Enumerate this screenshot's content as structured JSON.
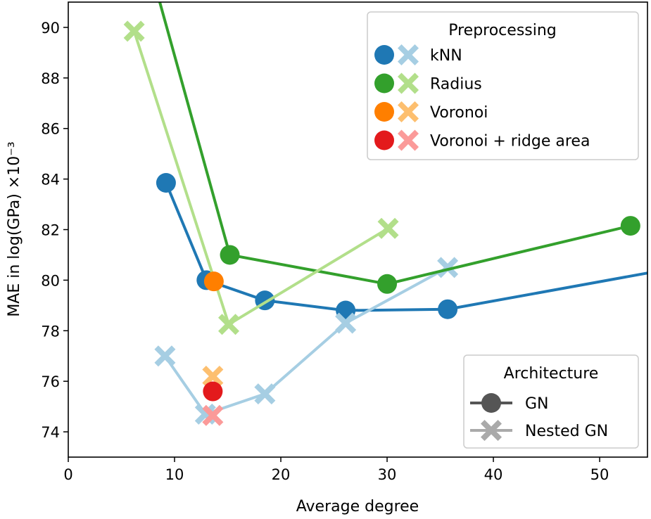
{
  "chart_data": {
    "type": "line",
    "title": "",
    "xlabel": "Average degree",
    "ylabel": "MAE in log(GPa) ×10⁻³",
    "xlim": [
      0,
      54.5
    ],
    "ylim": [
      73,
      91
    ],
    "xticks": [
      "0",
      "10",
      "20",
      "30",
      "40",
      "50"
    ],
    "yticks": [
      "74",
      "76",
      "78",
      "80",
      "82",
      "84",
      "86",
      "88",
      "90"
    ],
    "grid": false,
    "series": [
      {
        "name": "kNN",
        "arch": "GN",
        "color": "#1f78b4",
        "marker": "circle",
        "x": [
          9.2,
          13.0,
          18.5,
          26.1,
          35.7,
          60
        ],
        "y": [
          83.85,
          80.0,
          79.2,
          78.8,
          78.85,
          80.7
        ]
      },
      {
        "name": "kNN",
        "arch": "Nested GN",
        "color": "#a6cee3",
        "marker": "cross",
        "x": [
          9.1,
          12.9,
          18.5,
          26.1,
          35.7
        ],
        "y": [
          77.0,
          74.7,
          75.5,
          78.3,
          80.5
        ]
      },
      {
        "name": "Radius",
        "arch": "GN",
        "color": "#33a02c",
        "marker": "circle",
        "x": [
          6.5,
          15.2,
          30.0,
          52.9
        ],
        "y": [
          94.2,
          81.0,
          79.85,
          82.15
        ]
      },
      {
        "name": "Radius",
        "arch": "Nested GN",
        "color": "#b2df8a",
        "marker": "cross",
        "x": [
          6.2,
          15.1,
          30.1
        ],
        "y": [
          89.85,
          78.25,
          82.05
        ]
      },
      {
        "name": "Voronoi",
        "arch": "GN",
        "color": "#ff7f00",
        "marker": "circle",
        "x": [
          13.7
        ],
        "y": [
          79.95
        ]
      },
      {
        "name": "Voronoi",
        "arch": "Nested GN",
        "color": "#fdbf6f",
        "marker": "cross",
        "x": [
          13.6
        ],
        "y": [
          76.2
        ]
      },
      {
        "name": "Voronoi + ridge area",
        "arch": "GN",
        "color": "#e31a1c",
        "marker": "circle",
        "x": [
          13.6
        ],
        "y": [
          75.6
        ]
      },
      {
        "name": "Voronoi + ridge area",
        "arch": "Nested GN",
        "color": "#fb9a99",
        "marker": "cross",
        "x": [
          13.6
        ],
        "y": [
          74.65
        ]
      }
    ],
    "legend_preprocessing": {
      "title": "Preprocessing",
      "placement": "top-right",
      "items": [
        {
          "label": "kNN",
          "colors": [
            "#1f78b4",
            "#a6cee3"
          ]
        },
        {
          "label": "Radius",
          "colors": [
            "#33a02c",
            "#b2df8a"
          ]
        },
        {
          "label": "Voronoi",
          "colors": [
            "#ff7f00",
            "#fdbf6f"
          ]
        },
        {
          "label": "Voronoi + ridge area",
          "colors": [
            "#e31a1c",
            "#fb9a99"
          ]
        }
      ]
    },
    "legend_architecture": {
      "title": "Architecture",
      "placement": "bottom-right",
      "items": [
        {
          "label": "GN",
          "color": "#555555",
          "marker": "circle"
        },
        {
          "label": "Nested GN",
          "color": "#aaaaaa",
          "marker": "cross"
        }
      ]
    }
  }
}
